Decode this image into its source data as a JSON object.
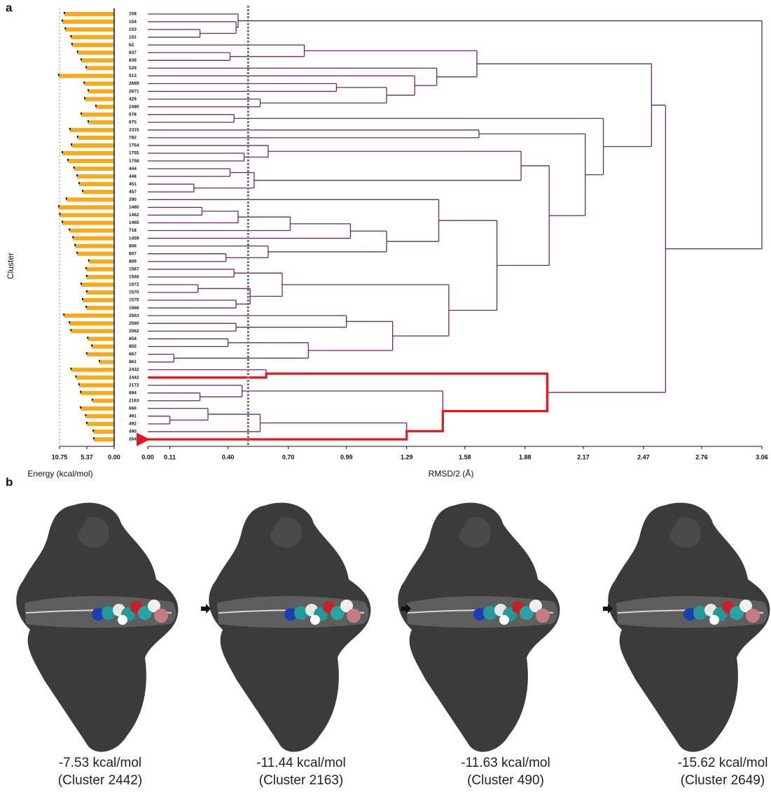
{
  "figure": {
    "panel_a": "a",
    "panel_b": "b"
  },
  "chart_data": [
    {
      "type": "bar",
      "orientation": "horizontal",
      "x_label": "Energy (kcal/mol)",
      "y_label": "Cluster",
      "color": "#f7aa1c",
      "categories": [
        "158",
        "154",
        "153",
        "151",
        "62",
        "837",
        "839",
        "529",
        "513",
        "2689",
        "2671",
        "429",
        "2480",
        "678",
        "675",
        "2315",
        "782",
        "1754",
        "1755",
        "1758",
        "444",
        "446",
        "451",
        "457",
        "290",
        "1460",
        "1462",
        "1465",
        "718",
        "1459",
        "806",
        "807",
        "809",
        "1567",
        "1568",
        "1572",
        "1570",
        "1575",
        "1566",
        "2563",
        "2560",
        "2562",
        "854",
        "855",
        "867",
        "861",
        "2432",
        "2442",
        "2172",
        "894",
        "2163",
        "666",
        "491",
        "492",
        "490",
        "2649"
      ],
      "values": [
        9.8,
        10.2,
        9.6,
        8.5,
        8.3,
        7.2,
        6.5,
        5.5,
        10.9,
        5.9,
        5.1,
        5.8,
        3.6,
        6.5,
        5.1,
        8.7,
        7.2,
        8.4,
        10.2,
        9.1,
        7.9,
        7.3,
        6.9,
        6.2,
        9.4,
        10.9,
        10.7,
        10.2,
        8.8,
        8.1,
        7.7,
        7.3,
        5.0,
        5.5,
        5.4,
        6.5,
        5.4,
        6.2,
        5.5,
        9.9,
        8.8,
        8.5,
        5.2,
        4.4,
        5.4,
        2.9,
        8.5,
        7.53,
        6.9,
        6.6,
        4.3,
        6.6,
        5.6,
        5.4,
        4.1,
        4.0
      ],
      "xlim": [
        10.75,
        0
      ],
      "xticks": [
        10.75,
        5.37,
        {
          "value": 0,
          "label": "0.00"
        }
      ],
      "xgrid_at_limit": true
    },
    {
      "type": "dendrogram",
      "x_label": "RMSD/2 (Å)",
      "color": "#642a6a",
      "xlim": [
        0,
        3.06
      ],
      "xticks": [
        {
          "value": 0,
          "label": "0.00"
        },
        {
          "value": 0.11,
          "label": "0.11"
        },
        {
          "value": 0.4,
          "label": "0.40"
        },
        {
          "value": 0.7,
          "label": "0.70"
        },
        0.99,
        1.29,
        1.58,
        1.88,
        2.17,
        2.47,
        2.76,
        3.06
      ],
      "threshold": 0.5,
      "threshold_color": "#777777",
      "highlight": {
        "from": "2442",
        "to": "2649",
        "color": "#e8141b"
      },
      "tree": {
        "height": 3.06,
        "children": [
          {
            "height": 0.45,
            "children": [
              "158",
              {
                "height": 0.44,
                "children": [
                  "154",
                  {
                    "height": 0.26,
                    "children": [
                      "153",
                      "151"
                    ]
                  }
                ]
              }
            ]
          },
          {
            "height": 2.58,
            "children": [
              {
                "height": 2.51,
                "children": [
                  {
                    "height": 1.64,
                    "children": [
                      {
                        "height": 0.78,
                        "children": [
                          "62",
                          {
                            "height": 0.41,
                            "children": [
                              "837",
                              "839"
                            ]
                          }
                        ]
                      },
                      {
                        "height": 1.44,
                        "children": [
                          "529",
                          {
                            "height": 1.33,
                            "children": [
                              "513",
                              {
                                "height": 1.19,
                                "children": [
                                  {
                                    "height": 0.94,
                                    "children": [
                                      "2689",
                                      "2671"
                                    ]
                                  },
                                  {
                                    "height": 0.56,
                                    "children": [
                                      "429",
                                      "2480"
                                    ]
                                  }
                                ]
                              }
                            ]
                          }
                        ]
                      }
                    ]
                  },
                  {
                    "height": 2.27,
                    "children": [
                      {
                        "height": 0.43,
                        "children": [
                          "678",
                          "675"
                        ]
                      },
                      {
                        "height": 2.18,
                        "children": [
                          {
                            "height": 1.65,
                            "children": [
                              "2315",
                              "782"
                            ]
                          },
                          {
                            "height": 2.0,
                            "children": [
                              {
                                "height": 1.86,
                                "children": [
                                  {
                                    "height": 0.6,
                                    "children": [
                                      "1754",
                                      {
                                        "height": 0.48,
                                        "children": [
                                          "1755",
                                          "1758"
                                        ]
                                      }
                                    ]
                                  },
                                  {
                                    "height": 0.53,
                                    "children": [
                                      {
                                        "height": 0.41,
                                        "children": [
                                          "444",
                                          "446"
                                        ]
                                      },
                                      {
                                        "height": 0.23,
                                        "children": [
                                          "451",
                                          "457"
                                        ]
                                      }
                                    ]
                                  }
                                ]
                              },
                              {
                                "height": 1.74,
                                "children": [
                                  {
                                    "height": 1.45,
                                    "children": [
                                      "290",
                                      {
                                        "height": 1.19,
                                        "children": [
                                          {
                                            "height": 1.01,
                                            "children": [
                                              {
                                                "height": 0.71,
                                                "children": [
                                                  {
                                                    "height": 0.45,
                                                    "children": [
                                                      {
                                                        "height": 0.27,
                                                        "children": [
                                                          "1460",
                                                          "1462"
                                                        ]
                                                      },
                                                      "1465"
                                                    ]
                                                  },
                                                  "718"
                                                ]
                                              },
                                              "1459"
                                            ]
                                          },
                                          {
                                            "height": 0.6,
                                            "children": [
                                              "806",
                                              {
                                                "height": 0.39,
                                                "children": [
                                                  "807",
                                                  "809"
                                                ]
                                              }
                                            ]
                                          }
                                        ]
                                      }
                                    ]
                                  },
                                  {
                                    "height": 1.5,
                                    "children": [
                                      {
                                        "height": 0.67,
                                        "children": [
                                          {
                                            "height": 0.43,
                                            "children": [
                                              "1567",
                                              "1568"
                                            ]
                                          },
                                          {
                                            "height": 0.51,
                                            "children": [
                                              {
                                                "height": 0.25,
                                                "children": [
                                                  "1572",
                                                  "1570"
                                                ]
                                              },
                                              {
                                                "height": 0.44,
                                                "children": [
                                                  "1575",
                                                  "1566"
                                                ]
                                              }
                                            ]
                                          }
                                        ]
                                      },
                                      {
                                        "height": 1.22,
                                        "children": [
                                          {
                                            "height": 0.99,
                                            "children": [
                                              "2563",
                                              {
                                                "height": 0.44,
                                                "children": [
                                                  "2560",
                                                  "2562"
                                                ]
                                              }
                                            ]
                                          },
                                          {
                                            "height": 0.8,
                                            "children": [
                                              {
                                                "height": 0.4,
                                                "children": [
                                                  "854",
                                                  "855"
                                                ]
                                              },
                                              {
                                                "height": 0.13,
                                                "children": [
                                                  "867",
                                                  "861"
                                                ]
                                              }
                                            ]
                                          }
                                        ]
                                      }
                                    ]
                                  }
                                ]
                              }
                            ]
                          }
                        ]
                      }
                    ]
                  }
                ]
              },
              {
                "height": 1.99,
                "children": [
                  {
                    "height": 0.59,
                    "children": [
                      "2432",
                      "2442"
                    ]
                  },
                  {
                    "height": 1.47,
                    "children": [
                      {
                        "height": 0.47,
                        "children": [
                          "2172",
                          {
                            "height": 0.26,
                            "children": [
                              "894",
                              "2163"
                            ]
                          }
                        ]
                      },
                      {
                        "height": 1.29,
                        "children": [
                          {
                            "height": 0.56,
                            "children": [
                              {
                                "height": 0.3,
                                "children": [
                                  "666",
                                  {
                                    "height": 0.11,
                                    "children": [
                                      "491",
                                      "492"
                                    ]
                                  }
                                ]
                              },
                              "490"
                            ]
                          },
                          "2649"
                        ]
                      }
                    ]
                  }
                ]
              }
            ]
          }
        ]
      }
    }
  ],
  "snapshots": [
    {
      "energy": "-7.53 kcal/mol",
      "cluster": "(Cluster 2442)"
    },
    {
      "energy": "-11.44 kcal/mol",
      "cluster": "(Cluster 2163)"
    },
    {
      "energy": "-11.63 kcal/mol",
      "cluster": "(Cluster 490)"
    },
    {
      "energy": "-15.62 kcal/mol",
      "cluster": "(Cluster 2649)"
    }
  ]
}
